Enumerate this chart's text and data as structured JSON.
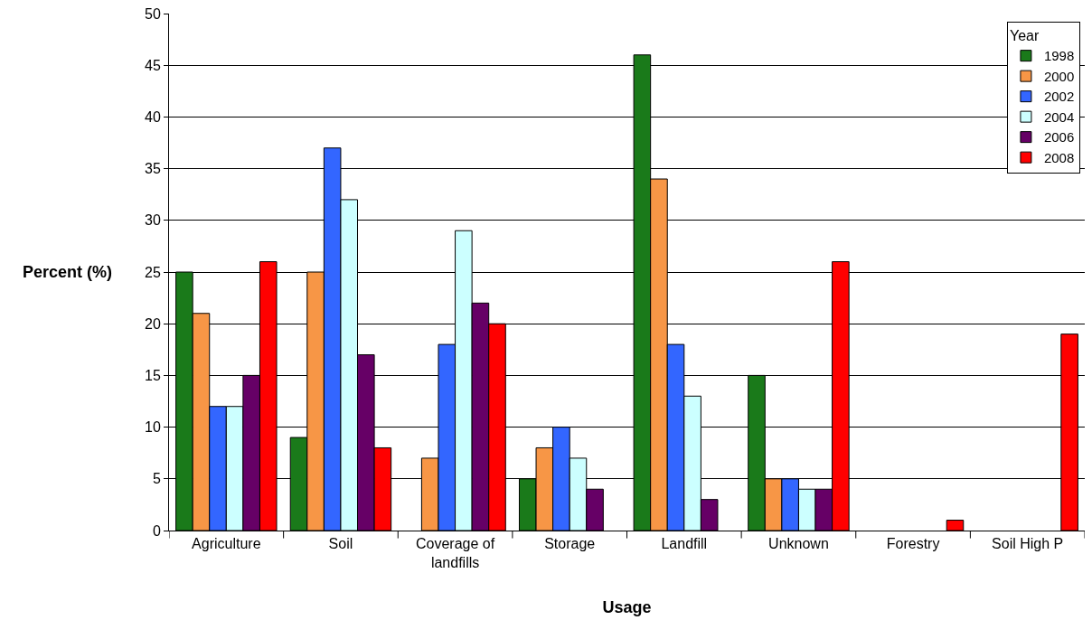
{
  "chart_data": {
    "type": "bar",
    "xlabel": "Usage",
    "ylabel": "Percent (%)",
    "legend_title": "Year",
    "categories": [
      "Agriculture",
      "Soil",
      "Coverage of landfills",
      "Storage",
      "Landfill",
      "Unknown",
      "Forestry",
      "Soil High P"
    ],
    "series": [
      {
        "name": "1998",
        "color": "#1a7a1a",
        "values": [
          25,
          9,
          null,
          5,
          46,
          15,
          null,
          null
        ]
      },
      {
        "name": "2000",
        "color": "#f79646",
        "values": [
          21,
          25,
          7,
          8,
          34,
          5,
          null,
          null
        ]
      },
      {
        "name": "2002",
        "color": "#3366ff",
        "values": [
          12,
          37,
          18,
          10,
          18,
          5,
          null,
          null
        ]
      },
      {
        "name": "2004",
        "color": "#ccffff",
        "values": [
          12,
          32,
          29,
          7,
          13,
          4,
          null,
          null
        ]
      },
      {
        "name": "2006",
        "color": "#660066",
        "values": [
          15,
          17,
          22,
          4,
          3,
          4,
          null,
          null
        ]
      },
      {
        "name": "2008",
        "color": "#ff0000",
        "values": [
          26,
          8,
          20,
          null,
          null,
          26,
          1,
          19
        ]
      }
    ],
    "ylim": [
      0,
      50
    ],
    "yticks": [
      0,
      5,
      10,
      15,
      20,
      25,
      30,
      35,
      40,
      45,
      50
    ],
    "grid": "y",
    "legend": "top right"
  }
}
